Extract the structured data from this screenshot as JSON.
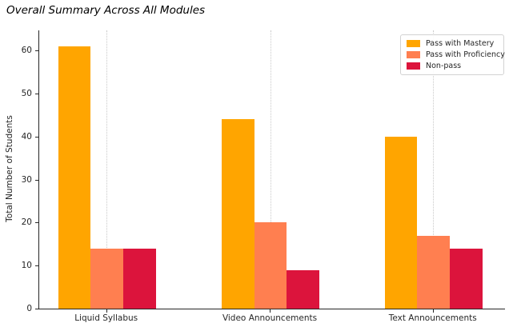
{
  "title": "Overall Summary Across All Modules",
  "chart_data": {
    "type": "bar",
    "title": "Overall Summary Across All Modules",
    "categories": [
      "Liquid Syllabus",
      "Video Announcements",
      "Text Announcements"
    ],
    "series": [
      {
        "name": "Pass with Mastery",
        "color": "#FFA500",
        "values": [
          61,
          44,
          40
        ]
      },
      {
        "name": "Pass with Proficiency",
        "color": "#FF7F50",
        "values": [
          14,
          20,
          17
        ]
      },
      {
        "name": "Non-pass",
        "color": "#DC143C",
        "values": [
          14,
          9,
          14
        ]
      }
    ],
    "xlabel": "",
    "ylabel": "Total Number of Students",
    "ylim": [
      0,
      64.7
    ],
    "yticks": [
      0,
      10,
      20,
      30,
      40,
      50,
      60
    ],
    "grid": "vertical-dotted-at-category-centers",
    "legend_position": "upper-right",
    "bar_group_layout": "3 bars per category, middle bar centered on tick"
  }
}
